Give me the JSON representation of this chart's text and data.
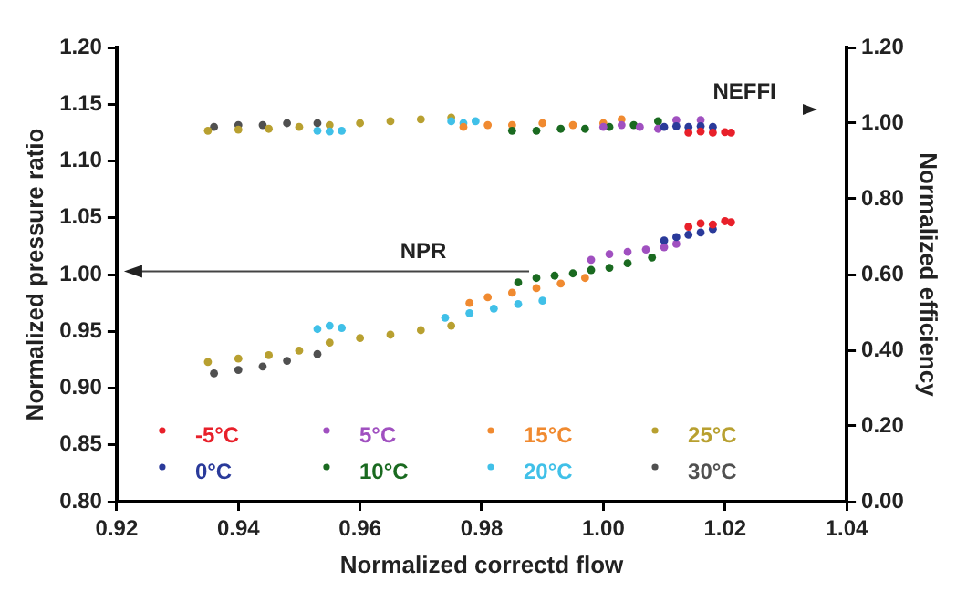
{
  "chart_data": {
    "type": "scatter",
    "xlabel": "Normalized correctd flow",
    "ylabel": "Normalized pressure ratio",
    "y2label": "Normalized efficiency",
    "xlim": [
      0.92,
      1.04
    ],
    "xticks": [
      {
        "value": 0.92,
        "label": "0.92"
      },
      {
        "value": 0.94,
        "label": "0.94"
      },
      {
        "value": 0.96,
        "label": "0.96"
      },
      {
        "value": 0.98,
        "label": "0.98"
      },
      {
        "value": 1.0,
        "label": "1.00"
      },
      {
        "value": 1.02,
        "label": "1.02"
      },
      {
        "value": 1.04,
        "label": "1.04"
      }
    ],
    "ylim": [
      0.8,
      1.2
    ],
    "yticks": [
      {
        "value": 0.8,
        "label": "0.80"
      },
      {
        "value": 0.85,
        "label": "0.85"
      },
      {
        "value": 0.9,
        "label": "0.90"
      },
      {
        "value": 0.95,
        "label": "0.95"
      },
      {
        "value": 1.0,
        "label": "1.00"
      },
      {
        "value": 1.05,
        "label": "1.05"
      },
      {
        "value": 1.1,
        "label": "1.10"
      },
      {
        "value": 1.15,
        "label": "1.15"
      },
      {
        "value": 1.2,
        "label": "1.20"
      }
    ],
    "y2lim": [
      0,
      1.2
    ],
    "y2ticks": [
      {
        "value": 0,
        "label": "0.00"
      },
      {
        "value": 0.2,
        "label": "0.20"
      },
      {
        "value": 0.4,
        "label": "0.40"
      },
      {
        "value": 0.6,
        "label": "0.60"
      },
      {
        "value": 0.8,
        "label": "0.80"
      },
      {
        "value": 1.0,
        "label": "1.00"
      },
      {
        "value": 1.2,
        "label": "1.20"
      }
    ],
    "grid": false,
    "legend": "bottom",
    "marker": "circle",
    "annotations": [
      "NPR",
      "NEFFI"
    ],
    "series": [
      {
        "name": "-5°C",
        "color": "#e8202a",
        "x": [
          1.014,
          1.016,
          1.018,
          1.02,
          1.021
        ],
        "values": [
          1.042,
          1.045,
          1.044,
          1.047,
          1.046
        ]
      },
      {
        "name": "0°C",
        "color": "#2a3a9a",
        "x": [
          1.01,
          1.012,
          1.014,
          1.016,
          1.018
        ],
        "values": [
          1.03,
          1.033,
          1.035,
          1.037,
          1.04
        ]
      },
      {
        "name": "5°C",
        "color": "#a050c0",
        "x": [
          0.998,
          1.001,
          1.004,
          1.007,
          1.01,
          1.012
        ],
        "values": [
          1.013,
          1.018,
          1.02,
          1.022,
          1.024,
          1.027
        ]
      },
      {
        "name": "10°C",
        "color": "#1a6a20",
        "x": [
          0.986,
          0.989,
          0.992,
          0.995,
          0.998,
          1.001,
          1.004,
          1.008
        ],
        "values": [
          0.993,
          0.997,
          0.999,
          1.001,
          1.004,
          1.006,
          1.01,
          1.015
        ]
      },
      {
        "name": "15°C",
        "color": "#f08a30",
        "x": [
          0.978,
          0.981,
          0.985,
          0.989,
          0.993,
          0.997
        ],
        "values": [
          0.975,
          0.98,
          0.984,
          0.988,
          0.992,
          0.997
        ]
      },
      {
        "name": "20°C",
        "color": "#40c0e8",
        "x": [
          0.953,
          0.955,
          0.957,
          0.974,
          0.978,
          0.982,
          0.986,
          0.99
        ],
        "values": [
          0.952,
          0.955,
          0.953,
          0.962,
          0.966,
          0.97,
          0.974,
          0.977
        ]
      },
      {
        "name": "25°C",
        "color": "#b8a030",
        "x": [
          0.935,
          0.94,
          0.945,
          0.95,
          0.955,
          0.96,
          0.965,
          0.97,
          0.975
        ],
        "values": [
          0.923,
          0.926,
          0.929,
          0.933,
          0.94,
          0.944,
          0.947,
          0.951,
          0.955
        ]
      },
      {
        "name": "30°C",
        "color": "#505050",
        "x": [
          0.936,
          0.94,
          0.944,
          0.948,
          0.953
        ],
        "values": [
          0.913,
          0.916,
          0.919,
          0.924,
          0.93
        ]
      },
      {
        "color": "#e8202a",
        "axis": "y2",
        "x": [
          1.014,
          1.016,
          1.018,
          1.02,
          1.021
        ],
        "values": [
          0.975,
          0.978,
          0.975,
          0.976,
          0.975
        ]
      },
      {
        "color": "#2a3a9a",
        "axis": "y2",
        "x": [
          1.01,
          1.012,
          1.014,
          1.016,
          1.018
        ],
        "values": [
          0.99,
          0.992,
          0.99,
          0.992,
          0.99
        ]
      },
      {
        "color": "#a050c0",
        "axis": "y2",
        "x": [
          1.0,
          1.003,
          1.006,
          1.009,
          1.012,
          1.016
        ],
        "values": [
          0.99,
          0.995,
          0.99,
          0.985,
          1.008,
          1.008
        ]
      },
      {
        "color": "#1a6a20",
        "axis": "y2",
        "x": [
          0.985,
          0.989,
          0.993,
          0.997,
          1.001,
          1.005,
          1.009
        ],
        "values": [
          0.98,
          0.98,
          0.985,
          0.985,
          0.99,
          0.995,
          1.005
        ]
      },
      {
        "color": "#f08a30",
        "axis": "y2",
        "x": [
          0.977,
          0.981,
          0.985,
          0.99,
          0.995,
          1.0,
          1.003
        ],
        "values": [
          0.99,
          0.995,
          0.995,
          1.0,
          0.995,
          1.0,
          1.01
        ]
      },
      {
        "color": "#40c0e8",
        "axis": "y2",
        "x": [
          0.953,
          0.955,
          0.957,
          0.975,
          0.977,
          0.979
        ],
        "values": [
          0.98,
          0.978,
          0.98,
          1.005,
          1.0,
          1.005
        ]
      },
      {
        "color": "#b8a030",
        "axis": "y2",
        "x": [
          0.935,
          0.94,
          0.945,
          0.95,
          0.955,
          0.96,
          0.965,
          0.97,
          0.975
        ],
        "values": [
          0.98,
          0.983,
          0.985,
          0.99,
          0.995,
          1.0,
          1.005,
          1.01,
          1.015
        ]
      },
      {
        "color": "#505050",
        "axis": "y2",
        "x": [
          0.936,
          0.94,
          0.944,
          0.948,
          0.953
        ],
        "values": [
          0.99,
          0.995,
          0.995,
          1.0,
          1.0
        ]
      }
    ]
  }
}
